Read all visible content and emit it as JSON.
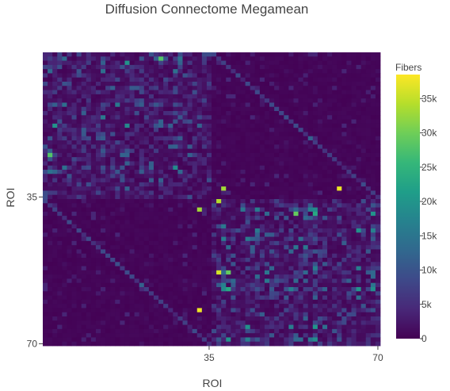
{
  "chart_data": {
    "type": "heatmap",
    "title": "Diffusion Connectome Megamean",
    "xlabel": "ROI",
    "ylabel": "ROI",
    "n_rois": 70,
    "x_ticks": [
      "35",
      "70"
    ],
    "y_ticks": [
      "35",
      "70"
    ],
    "y_axis_reversed": true,
    "colorscale": "Viridis",
    "colorbar": {
      "title": "Fibers",
      "ticks": [
        "0",
        "5k",
        "10k",
        "15k",
        "20k",
        "25k",
        "30k",
        "35k"
      ],
      "range": [
        0,
        38500
      ]
    },
    "structure": {
      "block_split_roi": 35,
      "upper_left_block": "within-hemisphere connections, moderate values",
      "lower_right_block": "within-hemisphere connections, moderate values",
      "off_diagonal_blocks": "sparse, mostly near 0 except a few strong homotopic links"
    },
    "peak_cells": [
      {
        "x": 61,
        "y": 32,
        "value": 37500
      },
      {
        "x": 32,
        "y": 61,
        "value": 37500
      },
      {
        "x": 37,
        "y": 32,
        "value": 33000
      },
      {
        "x": 32,
        "y": 37,
        "value": 33000
      },
      {
        "x": 36,
        "y": 52,
        "value": 36000
      },
      {
        "x": 36,
        "y": 35,
        "value": 34000
      },
      {
        "x": 24,
        "y": 1,
        "value": 28000
      },
      {
        "x": 1,
        "y": 24,
        "value": 28000
      }
    ]
  },
  "colors": {
    "background_cell": "#2c1f5e",
    "viridis": [
      "#440154",
      "#482878",
      "#3e4989",
      "#31688e",
      "#26828e",
      "#1f9e89",
      "#35b779",
      "#6ece58",
      "#b5de2b",
      "#fde725"
    ]
  }
}
